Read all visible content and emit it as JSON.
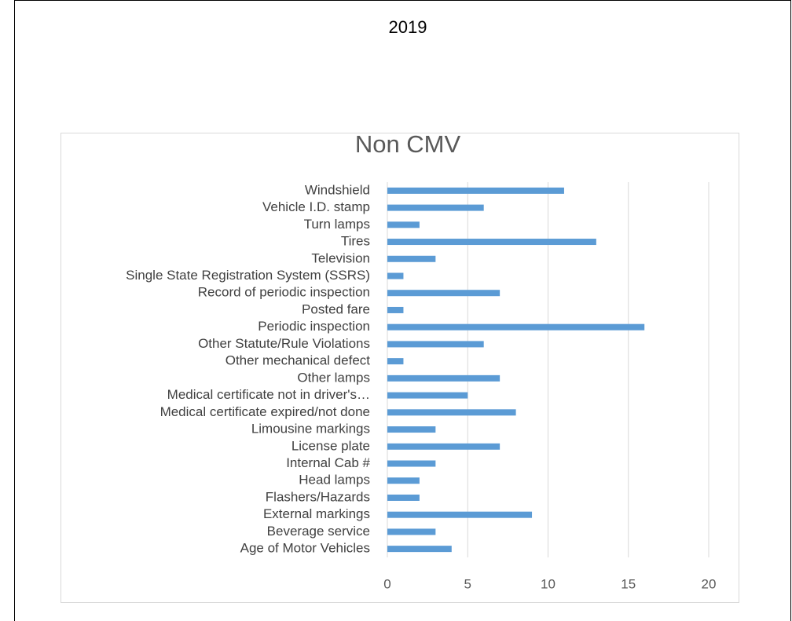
{
  "heading": "2019",
  "chart_data": {
    "type": "bar",
    "orientation": "horizontal",
    "title": "Non CMV",
    "categories": [
      "Age of Motor Vehicles",
      "Beverage service",
      "External markings",
      "Flashers/Hazards",
      "Head lamps",
      "Internal Cab #",
      "License plate",
      "Limousine markings",
      "Medical certificate expired/not done",
      "Medical certificate not in driver's…",
      "Other lamps",
      "Other mechanical defect",
      "Other Statute/Rule Violations",
      "Periodic inspection",
      "Posted fare",
      "Record of periodic inspection",
      "Single State Registration System (SSRS)",
      "Television",
      "Tires",
      "Turn lamps",
      "Vehicle I.D. stamp",
      "Windshield"
    ],
    "values": [
      4,
      3,
      9,
      2,
      2,
      3,
      7,
      3,
      8,
      5,
      7,
      1,
      6,
      16,
      1,
      7,
      1,
      3,
      13,
      2,
      6,
      11
    ],
    "color": "#5b9bd5",
    "xlim": [
      0,
      20
    ],
    "xticks": [
      0,
      5,
      10,
      15,
      20
    ],
    "grid": true
  }
}
